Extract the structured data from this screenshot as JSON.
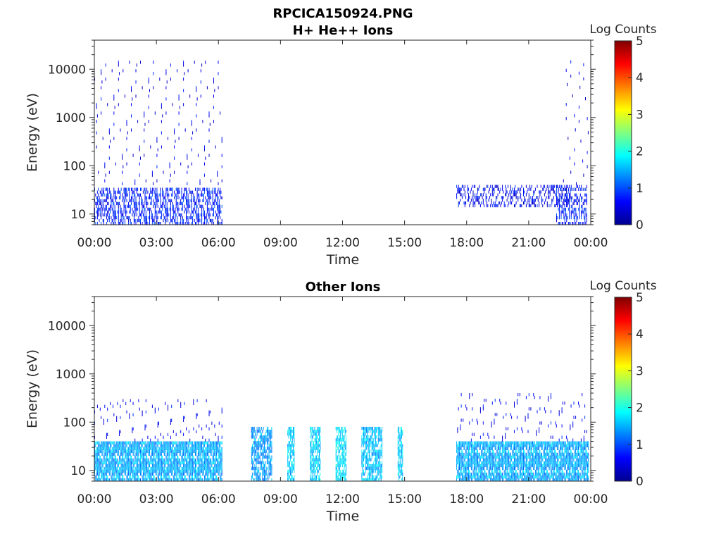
{
  "figure_title": "RPCICA150924.PNG",
  "colors": {
    "colormap": "jet",
    "axis": "#262626",
    "background": "#ffffff"
  },
  "chart_data": [
    {
      "type": "heatmap",
      "title": "H+ He++ Ions",
      "xlabel": "Time",
      "ylabel": "Energy (eV)",
      "yscale": "log",
      "xlim_hours": [
        0,
        24
      ],
      "ylim": [
        6,
        40000
      ],
      "xticks": [
        "00:00",
        "03:00",
        "06:00",
        "09:00",
        "12:00",
        "15:00",
        "18:00",
        "21:00",
        "00:00"
      ],
      "yticks": [
        10,
        100,
        1000,
        10000
      ],
      "ytick_labels": [
        "10",
        "100",
        "1000",
        "10000"
      ],
      "colorbar": {
        "label": "Log Counts",
        "range": [
          0,
          5
        ],
        "ticks": [
          "0",
          "1",
          "2",
          "3",
          "4",
          "5"
        ]
      },
      "regions": [
        {
          "t_start": "00:00",
          "t_end": "06:10",
          "e_min": 6,
          "e_max": 35,
          "log_counts": 0.5,
          "fill": 0.55
        },
        {
          "t_start": "00:00",
          "t_end": "06:10",
          "e_min": 35,
          "e_max": 15000,
          "log_counts": 0.2,
          "fill": 0.06
        },
        {
          "t_start": "17:30",
          "t_end": "23:00",
          "e_min": 14,
          "e_max": 40,
          "log_counts": 0.3,
          "fill": 0.4
        },
        {
          "t_start": "22:20",
          "t_end": "23:50",
          "e_min": 6,
          "e_max": 40,
          "log_counts": 0.5,
          "fill": 0.5
        },
        {
          "t_start": "22:40",
          "t_end": "23:55",
          "e_min": 40,
          "e_max": 20000,
          "log_counts": 0.15,
          "fill": 0.04
        }
      ]
    },
    {
      "type": "heatmap",
      "title": "Other Ions",
      "xlabel": "Time",
      "ylabel": "Energy (eV)",
      "yscale": "log",
      "xlim_hours": [
        0,
        24
      ],
      "ylim": [
        6,
        40000
      ],
      "xticks": [
        "00:00",
        "03:00",
        "06:00",
        "09:00",
        "12:00",
        "15:00",
        "18:00",
        "21:00",
        "00:00"
      ],
      "yticks": [
        10,
        100,
        1000,
        10000
      ],
      "ytick_labels": [
        "10",
        "100",
        "1000",
        "10000"
      ],
      "colorbar": {
        "label": "Log Counts",
        "range": [
          0,
          5
        ],
        "ticks": [
          "0",
          "1",
          "2",
          "3",
          "4",
          "5"
        ]
      },
      "regions": [
        {
          "t_start": "00:00",
          "t_end": "06:10",
          "e_min": 6,
          "e_max": 40,
          "log_counts": 1.3,
          "fill": 0.85
        },
        {
          "t_start": "00:00",
          "t_end": "06:10",
          "e_min": 40,
          "e_max": 300,
          "log_counts": 0.3,
          "fill": 0.08
        },
        {
          "t_start": "07:35",
          "t_end": "08:35",
          "e_min": 6,
          "e_max": 80,
          "log_counts": 1.2,
          "fill": 0.7
        },
        {
          "t_start": "09:20",
          "t_end": "09:40",
          "e_min": 6,
          "e_max": 80,
          "log_counts": 1.5,
          "fill": 0.8
        },
        {
          "t_start": "10:25",
          "t_end": "10:55",
          "e_min": 6,
          "e_max": 80,
          "log_counts": 1.5,
          "fill": 0.8
        },
        {
          "t_start": "11:40",
          "t_end": "12:10",
          "e_min": 6,
          "e_max": 80,
          "log_counts": 1.6,
          "fill": 0.8
        },
        {
          "t_start": "12:55",
          "t_end": "13:55",
          "e_min": 6,
          "e_max": 80,
          "log_counts": 1.4,
          "fill": 0.75
        },
        {
          "t_start": "14:40",
          "t_end": "14:55",
          "e_min": 6,
          "e_max": 80,
          "log_counts": 1.5,
          "fill": 0.8
        },
        {
          "t_start": "17:30",
          "t_end": "23:55",
          "e_min": 6,
          "e_max": 40,
          "log_counts": 1.3,
          "fill": 0.85
        },
        {
          "t_start": "17:30",
          "t_end": "23:55",
          "e_min": 40,
          "e_max": 400,
          "log_counts": 0.3,
          "fill": 0.08
        }
      ]
    }
  ]
}
